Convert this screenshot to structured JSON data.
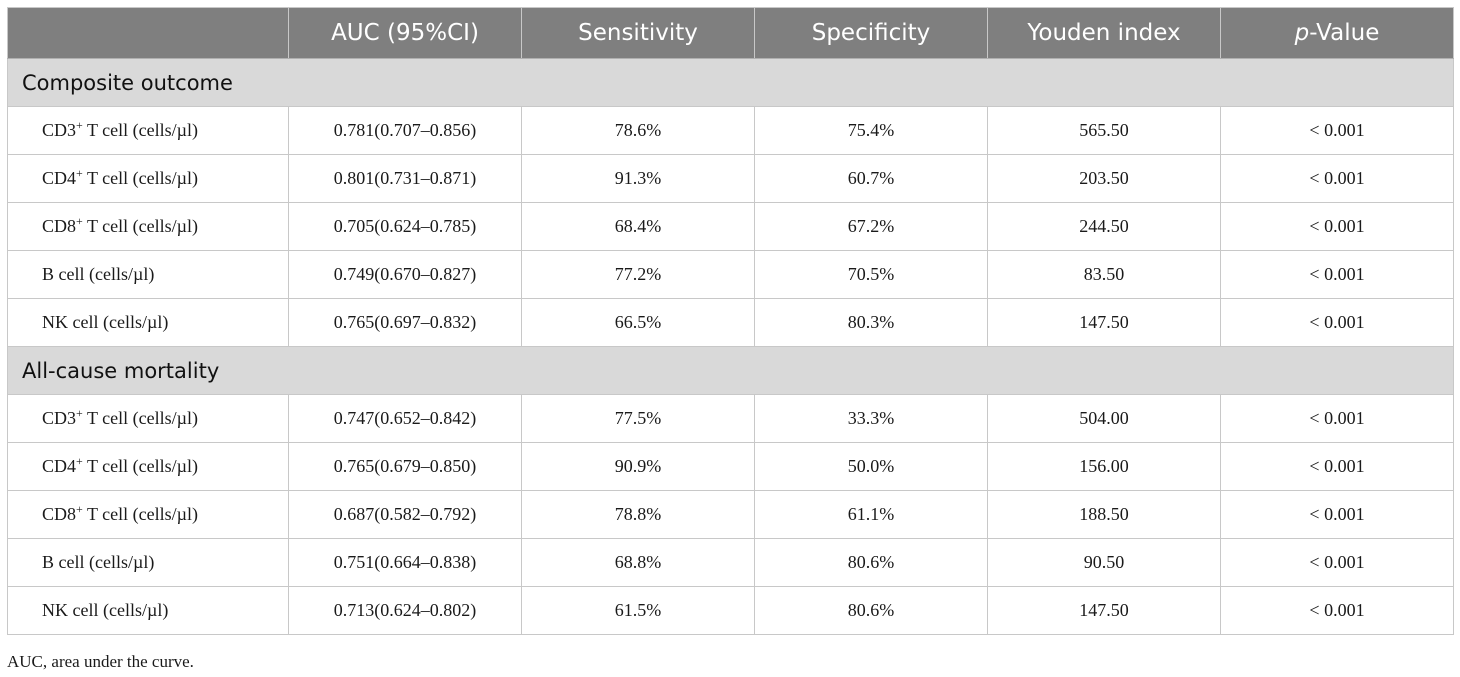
{
  "table": {
    "headers": {
      "col0": "",
      "auc": "AUC (95%CI)",
      "sensitivity": "Sensitivity",
      "specificity": "Specificity",
      "youden": "Youden index",
      "p_prefix": "p",
      "p_suffix": "-Value"
    },
    "sections": [
      {
        "title": "Composite outcome",
        "rows": [
          {
            "label_pre": "CD3",
            "label_sup": "+",
            "label_post": " T cell (cells/µl)",
            "auc": "0.781(0.707–0.856)",
            "sensitivity": "78.6%",
            "specificity": "75.4%",
            "youden": "565.50",
            "p": "< 0.001"
          },
          {
            "label_pre": "CD4",
            "label_sup": "+",
            "label_post": " T cell (cells/µl)",
            "auc": "0.801(0.731–0.871)",
            "sensitivity": "91.3%",
            "specificity": "60.7%",
            "youden": "203.50",
            "p": "< 0.001"
          },
          {
            "label_pre": "CD8",
            "label_sup": "+",
            "label_post": " T cell (cells/µl)",
            "auc": "0.705(0.624–0.785)",
            "sensitivity": "68.4%",
            "specificity": "67.2%",
            "youden": "244.50",
            "p": "< 0.001"
          },
          {
            "label_pre": "B cell (cells/µl)",
            "label_sup": "",
            "label_post": "",
            "auc": "0.749(0.670–0.827)",
            "sensitivity": "77.2%",
            "specificity": "70.5%",
            "youden": "83.50",
            "p": "< 0.001"
          },
          {
            "label_pre": "NK cell (cells/µl)",
            "label_sup": "",
            "label_post": "",
            "auc": "0.765(0.697–0.832)",
            "sensitivity": "66.5%",
            "specificity": "80.3%",
            "youden": "147.50",
            "p": "< 0.001"
          }
        ]
      },
      {
        "title": "All-cause mortality",
        "rows": [
          {
            "label_pre": "CD3",
            "label_sup": "+",
            "label_post": " T cell (cells/µl)",
            "auc": "0.747(0.652–0.842)",
            "sensitivity": "77.5%",
            "specificity": "33.3%",
            "youden": "504.00",
            "p": "< 0.001"
          },
          {
            "label_pre": "CD4",
            "label_sup": "+",
            "label_post": " T cell (cells/µl)",
            "auc": "0.765(0.679–0.850)",
            "sensitivity": "90.9%",
            "specificity": "50.0%",
            "youden": "156.00",
            "p": "< 0.001"
          },
          {
            "label_pre": "CD8",
            "label_sup": "+",
            "label_post": " T cell (cells/µl)",
            "auc": "0.687(0.582–0.792)",
            "sensitivity": "78.8%",
            "specificity": "61.1%",
            "youden": "188.50",
            "p": "< 0.001"
          },
          {
            "label_pre": "B cell (cells/µl)",
            "label_sup": "",
            "label_post": "",
            "auc": "0.751(0.664–0.838)",
            "sensitivity": "68.8%",
            "specificity": "80.6%",
            "youden": "90.50",
            "p": "< 0.001"
          },
          {
            "label_pre": "NK cell (cells/µl)",
            "label_sup": "",
            "label_post": "",
            "auc": "0.713(0.624–0.802)",
            "sensitivity": "61.5%",
            "specificity": "80.6%",
            "youden": "147.50",
            "p": "< 0.001"
          }
        ]
      }
    ]
  },
  "footnote": "AUC, area under the curve.",
  "colors": {
    "header_bg": "#7f7f7f",
    "section_bg": "#d9d9d9",
    "border": "#c8c8c8"
  }
}
